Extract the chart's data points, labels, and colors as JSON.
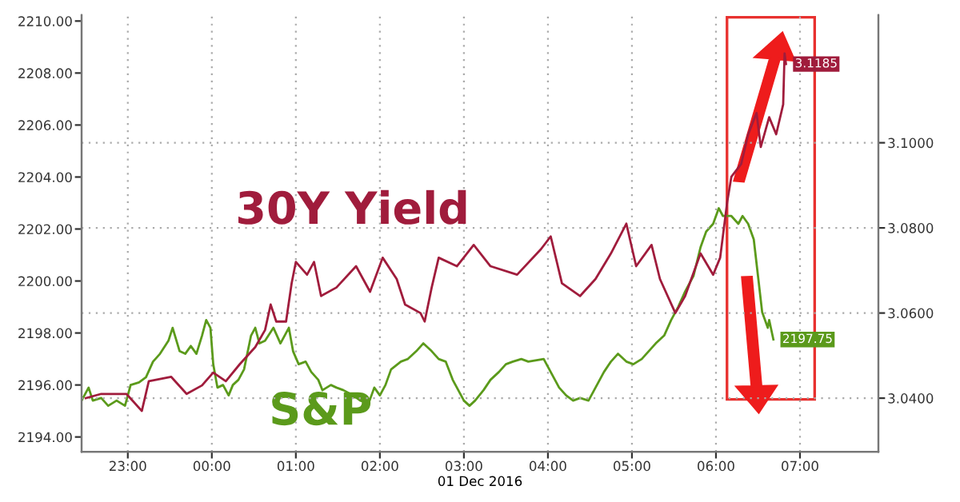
{
  "chart_data": {
    "type": "line",
    "xlabel": "01 Dec 2016",
    "xlim": [
      "2016-11-30T22:27",
      "2016-12-01T07:56"
    ],
    "xticks": [
      {
        "value": "2016-11-30T23:00",
        "label": "23:00"
      },
      {
        "value": "2016-12-01T00:00",
        "label": "00:00"
      },
      {
        "value": "2016-12-01T01:00",
        "label": "01:00"
      },
      {
        "value": "2016-12-01T02:00",
        "label": "02:00"
      },
      {
        "value": "2016-12-01T03:00",
        "label": "03:00"
      },
      {
        "value": "2016-12-01T04:00",
        "label": "04:00"
      },
      {
        "value": "2016-12-01T05:00",
        "label": "05:00"
      },
      {
        "value": "2016-12-01T06:00",
        "label": "06:00"
      },
      {
        "value": "2016-12-01T07:00",
        "label": "07:00"
      }
    ],
    "ylim": [
      2193.43,
      2210.23
    ],
    "yticks": [
      {
        "value": 2194,
        "label": "2194.00"
      },
      {
        "value": 2196,
        "label": "2196.00"
      },
      {
        "value": 2198,
        "label": "2198.00"
      },
      {
        "value": 2200,
        "label": "2200.00"
      },
      {
        "value": 2202,
        "label": "2202.00"
      },
      {
        "value": 2204,
        "label": "2204.00"
      },
      {
        "value": 2206,
        "label": "2206.00"
      },
      {
        "value": 2208,
        "label": "2208.00"
      },
      {
        "value": 2210,
        "label": "2210.00"
      }
    ],
    "y2lim": [
      3.0274,
      3.13
    ],
    "y2ticks": [
      {
        "value": 3.04,
        "label": "3.0400"
      },
      {
        "value": 3.06,
        "label": "3.0600"
      },
      {
        "value": 3.08,
        "label": "3.0800"
      },
      {
        "value": 3.1,
        "label": "3.1000"
      }
    ],
    "grid": true,
    "line_style": "solid",
    "series": [
      {
        "name": "S&P",
        "color": "#5b9a1b",
        "axis": "y",
        "x": [
          "2016-11-30T22:27",
          "2016-11-30T22:32",
          "2016-11-30T22:35",
          "2016-11-30T22:41",
          "2016-11-30T22:46",
          "2016-11-30T22:52",
          "2016-11-30T22:58",
          "2016-11-30T23:02",
          "2016-11-30T23:08",
          "2016-11-30T23:13",
          "2016-11-30T23:18",
          "2016-11-30T23:23",
          "2016-11-30T23:29",
          "2016-11-30T23:32",
          "2016-11-30T23:37",
          "2016-11-30T23:41",
          "2016-11-30T23:45",
          "2016-11-30T23:49",
          "2016-11-30T23:53",
          "2016-11-30T23:56",
          "2016-11-30T23:59",
          "2016-12-01T00:01",
          "2016-12-01T00:04",
          "2016-12-01T00:08",
          "2016-12-01T00:12",
          "2016-12-01T00:15",
          "2016-12-01T00:19",
          "2016-12-01T00:23",
          "2016-12-01T00:28",
          "2016-12-01T00:31",
          "2016-12-01T00:34",
          "2016-12-01T00:38",
          "2016-12-01T00:44",
          "2016-12-01T00:49",
          "2016-12-01T00:55",
          "2016-12-01T00:58",
          "2016-12-01T01:02",
          "2016-12-01T01:07",
          "2016-12-01T01:11",
          "2016-12-01T01:16",
          "2016-12-01T01:19",
          "2016-12-01T01:25",
          "2016-12-01T01:29",
          "2016-12-01T01:34",
          "2016-12-01T01:41",
          "2016-12-01T01:46",
          "2016-12-01T01:52",
          "2016-12-01T01:56",
          "2016-12-01T02:00",
          "2016-12-01T02:04",
          "2016-12-01T02:08",
          "2016-12-01T02:15",
          "2016-12-01T02:20",
          "2016-12-01T02:26",
          "2016-12-01T02:31",
          "2016-12-01T02:37",
          "2016-12-01T02:42",
          "2016-12-01T02:47",
          "2016-12-01T02:52",
          "2016-12-01T02:56",
          "2016-12-01T03:00",
          "2016-12-01T03:04",
          "2016-12-01T03:08",
          "2016-12-01T03:14",
          "2016-12-01T03:19",
          "2016-12-01T03:25",
          "2016-12-01T03:30",
          "2016-12-01T03:35",
          "2016-12-01T03:41",
          "2016-12-01T03:46",
          "2016-12-01T03:57",
          "2016-12-01T04:02",
          "2016-12-01T04:08",
          "2016-12-01T04:13",
          "2016-12-01T04:18",
          "2016-12-01T04:23",
          "2016-12-01T04:29",
          "2016-12-01T04:34",
          "2016-12-01T04:40",
          "2016-12-01T04:45",
          "2016-12-01T04:50",
          "2016-12-01T04:56",
          "2016-12-01T05:01",
          "2016-12-01T05:07",
          "2016-12-01T05:12",
          "2016-12-01T05:17",
          "2016-12-01T05:23",
          "2016-12-01T05:28",
          "2016-12-01T05:33",
          "2016-12-01T05:38",
          "2016-12-01T05:44",
          "2016-12-01T05:49",
          "2016-12-01T05:53",
          "2016-12-01T05:58",
          "2016-12-01T06:02",
          "2016-12-01T06:05",
          "2016-12-01T06:11",
          "2016-12-01T06:16",
          "2016-12-01T06:19",
          "2016-12-01T06:23",
          "2016-12-01T06:27",
          "2016-12-01T06:30",
          "2016-12-01T06:33",
          "2016-12-01T06:37",
          "2016-12-01T06:38",
          "2016-12-01T06:41"
        ],
        "values": [
          2195.4,
          2195.9,
          2195.4,
          2195.5,
          2195.2,
          2195.4,
          2195.2,
          2196.0,
          2196.1,
          2196.3,
          2196.9,
          2197.2,
          2197.7,
          2198.2,
          2197.3,
          2197.2,
          2197.5,
          2197.2,
          2197.9,
          2198.5,
          2198.2,
          2196.8,
          2195.9,
          2196.0,
          2195.6,
          2196.0,
          2196.2,
          2196.6,
          2197.9,
          2198.2,
          2197.6,
          2197.7,
          2198.2,
          2197.6,
          2198.2,
          2197.3,
          2196.8,
          2196.9,
          2196.5,
          2196.2,
          2195.8,
          2196.0,
          2195.9,
          2195.8,
          2195.6,
          2195.4,
          2195.3,
          2195.9,
          2195.6,
          2196.0,
          2196.6,
          2196.9,
          2197.0,
          2197.3,
          2197.6,
          2197.3,
          2197.0,
          2196.9,
          2196.2,
          2195.8,
          2195.4,
          2195.2,
          2195.4,
          2195.8,
          2196.2,
          2196.5,
          2196.8,
          2196.9,
          2197.0,
          2196.9,
          2197.0,
          2196.5,
          2195.9,
          2195.6,
          2195.4,
          2195.5,
          2195.4,
          2195.9,
          2196.5,
          2196.9,
          2197.2,
          2196.9,
          2196.8,
          2197.0,
          2197.3,
          2197.6,
          2197.9,
          2198.5,
          2199.0,
          2199.6,
          2200.2,
          2201.3,
          2201.9,
          2202.2,
          2202.8,
          2202.5,
          2202.5,
          2202.2,
          2202.5,
          2202.2,
          2201.6,
          2200.2,
          2198.8,
          2198.2,
          2198.5,
          2197.75
        ],
        "value_labels": [
          null,
          null,
          null,
          null,
          null,
          null,
          null,
          null,
          null,
          null,
          null,
          null,
          null,
          null,
          null,
          null,
          null,
          null,
          null,
          null,
          null,
          null,
          null,
          null,
          null,
          null,
          null,
          null,
          null,
          null,
          null,
          null,
          null,
          null,
          null,
          null,
          null,
          null,
          null,
          null,
          null,
          null,
          null,
          null,
          null,
          null,
          null,
          null,
          null,
          null,
          null,
          null,
          null,
          null,
          null,
          null,
          null,
          null,
          null,
          null,
          null,
          null,
          null,
          null,
          null,
          null,
          null,
          null,
          null,
          null,
          null,
          null,
          null,
          null,
          null,
          null,
          null,
          null,
          null,
          null,
          null,
          null,
          null,
          null,
          null,
          null,
          null,
          null,
          null,
          null,
          null,
          null,
          null,
          null,
          null,
          null,
          null,
          null,
          null,
          null,
          null,
          null,
          null,
          null,
          null,
          "2197.75"
        ]
      },
      {
        "name": "30Y Yield",
        "color": "#a01c3c",
        "axis": "y2",
        "x": [
          "2016-11-30T22:30",
          "2016-11-30T22:41",
          "2016-11-30T22:59",
          "2016-11-30T23:10",
          "2016-11-30T23:15",
          "2016-11-30T23:31",
          "2016-11-30T23:42",
          "2016-11-30T23:53",
          "2016-12-01T00:01",
          "2016-12-01T00:10",
          "2016-12-01T00:20",
          "2016-12-01T00:31",
          "2016-12-01T00:38",
          "2016-12-01T00:42",
          "2016-12-01T00:46",
          "2016-12-01T00:53",
          "2016-12-01T00:57",
          "2016-12-01T01:00",
          "2016-12-01T01:08",
          "2016-12-01T01:13",
          "2016-12-01T01:18",
          "2016-12-01T01:29",
          "2016-12-01T01:43",
          "2016-12-01T01:53",
          "2016-12-01T02:02",
          "2016-12-01T02:12",
          "2016-12-01T02:18",
          "2016-12-01T02:29",
          "2016-12-01T02:32",
          "2016-12-01T02:37",
          "2016-12-01T02:42",
          "2016-12-01T02:55",
          "2016-12-01T03:07",
          "2016-12-01T03:19",
          "2016-12-01T03:38",
          "2016-12-01T03:55",
          "2016-12-01T04:02",
          "2016-12-01T04:10",
          "2016-12-01T04:23",
          "2016-12-01T04:34",
          "2016-12-01T04:45",
          "2016-12-01T04:56",
          "2016-12-01T05:03",
          "2016-12-01T05:14",
          "2016-12-01T05:20",
          "2016-12-01T05:31",
          "2016-12-01T05:38",
          "2016-12-01T05:49",
          "2016-12-01T05:58",
          "2016-12-01T06:03",
          "2016-12-01T06:08",
          "2016-12-01T06:11",
          "2016-12-01T06:18",
          "2016-12-01T06:23",
          "2016-12-01T06:29",
          "2016-12-01T06:32",
          "2016-12-01T06:38",
          "2016-12-01T06:43",
          "2016-12-01T06:48",
          "2016-12-01T06:49",
          "2016-12-01T06:50"
        ],
        "values": [
          3.04,
          3.041,
          3.041,
          3.037,
          3.044,
          3.045,
          3.041,
          3.043,
          3.046,
          3.044,
          3.048,
          3.052,
          3.056,
          3.062,
          3.058,
          3.058,
          3.067,
          3.072,
          3.069,
          3.072,
          3.064,
          3.066,
          3.071,
          3.065,
          3.073,
          3.068,
          3.062,
          3.06,
          3.058,
          3.066,
          3.073,
          3.071,
          3.076,
          3.071,
          3.069,
          3.075,
          3.078,
          3.067,
          3.064,
          3.068,
          3.074,
          3.081,
          3.071,
          3.076,
          3.068,
          3.06,
          3.064,
          3.074,
          3.069,
          3.073,
          3.086,
          3.092,
          3.095,
          3.102,
          3.107,
          3.099,
          3.106,
          3.102,
          3.109,
          3.121,
          3.1185
        ],
        "value_labels": [
          null,
          null,
          null,
          null,
          null,
          null,
          null,
          null,
          null,
          null,
          null,
          null,
          null,
          null,
          null,
          null,
          null,
          null,
          null,
          null,
          null,
          null,
          null,
          null,
          null,
          null,
          null,
          null,
          null,
          null,
          null,
          null,
          null,
          null,
          null,
          null,
          null,
          null,
          null,
          null,
          null,
          null,
          null,
          null,
          null,
          null,
          null,
          null,
          null,
          null,
          null,
          null,
          null,
          null,
          null,
          null,
          null,
          null,
          null,
          null,
          "3.1185"
        ]
      }
    ]
  }
}
